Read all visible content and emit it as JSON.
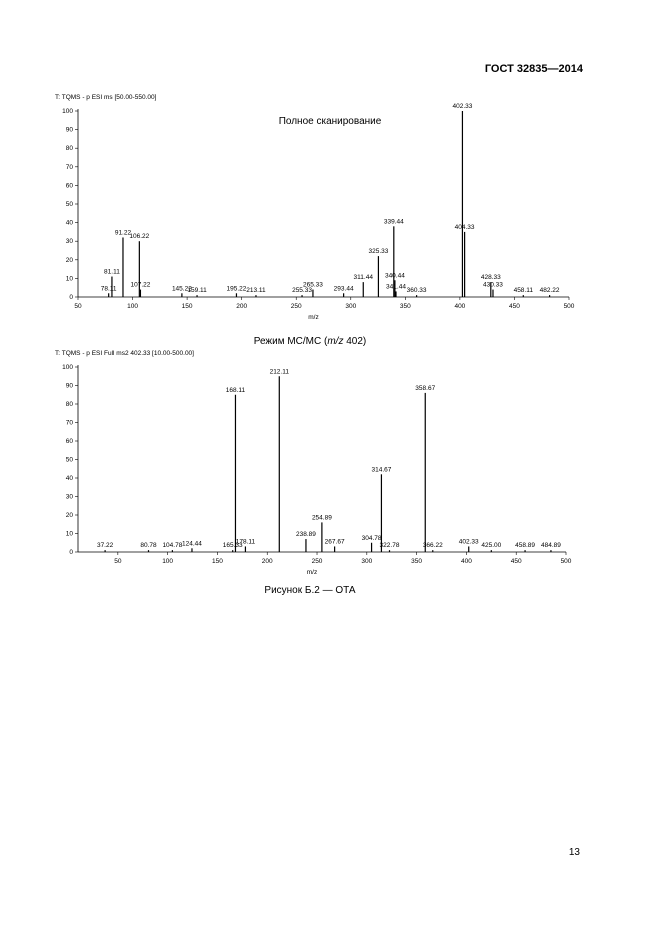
{
  "header": {
    "code": "ГОСТ 32835—2014"
  },
  "chart_data": [
    {
      "type": "bar",
      "title": "T: TQMS - p ESI ms [50.00-550.00]",
      "annotation": "Полное сканирование",
      "x_label": "m/z",
      "color": "#000000",
      "x": [
        78.11,
        81.11,
        91.22,
        106.22,
        107.22,
        145.22,
        159.11,
        195.22,
        213.11,
        255.33,
        265.33,
        293.44,
        311.44,
        325.33,
        339.44,
        340.44,
        341.44,
        360.33,
        402.33,
        404.33,
        428.33,
        430.33,
        458.11,
        482.22
      ],
      "values": [
        2,
        11,
        32,
        30,
        4,
        2,
        1,
        2,
        1,
        1,
        4,
        2,
        8,
        22,
        38,
        9,
        3,
        1,
        100,
        35,
        8,
        4,
        1,
        1
      ],
      "xlim": [
        50,
        500
      ],
      "xticks": [
        50,
        100,
        150,
        200,
        250,
        300,
        350,
        400,
        450,
        500
      ],
      "ylim": [
        0,
        100
      ],
      "yticks": [
        0,
        10,
        20,
        30,
        40,
        50,
        60,
        70,
        80,
        90,
        100
      ]
    },
    {
      "type": "bar",
      "subtitle_parts": [
        "Режим МС/МС (",
        "m/z",
        " 402)"
      ],
      "title": "T: TQMS - p ESI Full ms2 402.33 [10.00-500.00]",
      "x_label": "m/z",
      "color": "#000000",
      "x": [
        37.22,
        80.78,
        104.78,
        124.44,
        165.33,
        168.11,
        178.11,
        212.11,
        238.89,
        254.89,
        267.67,
        304.78,
        314.67,
        322.78,
        358.67,
        366.22,
        402.33,
        {
          "value": 425,
          "label": "425.00"
        },
        458.89,
        484.89
      ],
      "values": [
        1,
        1,
        1,
        2,
        1,
        85,
        3,
        95,
        7,
        16,
        3,
        5,
        42,
        1,
        86,
        1,
        3,
        1,
        1,
        1
      ],
      "xlim": [
        10,
        500
      ],
      "xticks": [
        50,
        100,
        150,
        200,
        250,
        300,
        350,
        400,
        450,
        500
      ],
      "ylim": [
        0,
        100
      ],
      "yticks": [
        0,
        10,
        20,
        30,
        40,
        50,
        60,
        70,
        80,
        90,
        100
      ]
    }
  ],
  "caption": "Рисунок Б.2 — ОТА",
  "page_number": "13"
}
